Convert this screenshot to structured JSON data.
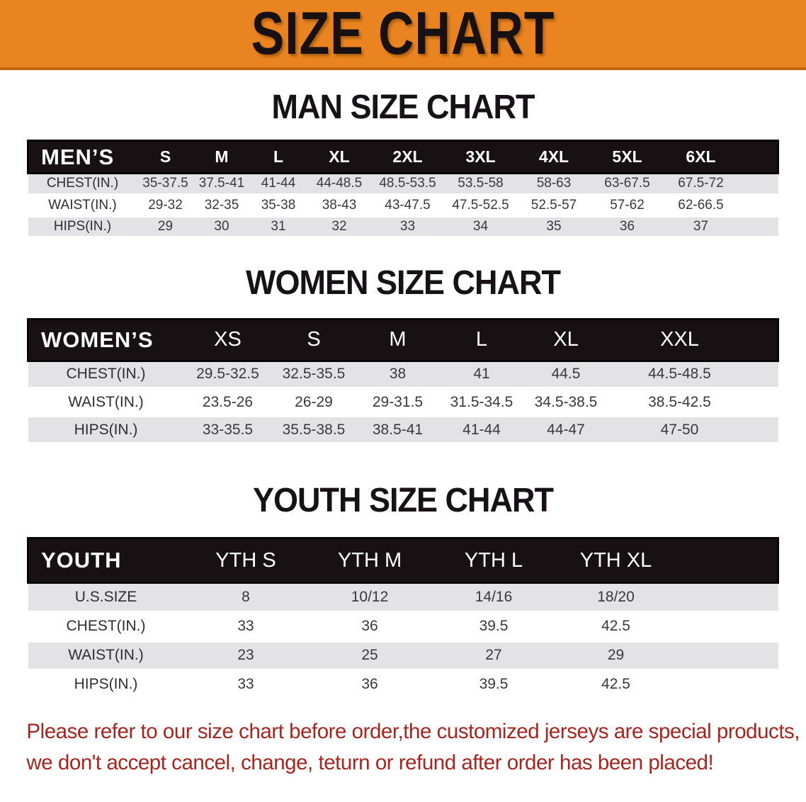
{
  "banner": {
    "title": "SIZE CHART"
  },
  "colors": {
    "banner_orange": "#EA8420",
    "banner_edge": "#C4690E",
    "header_black": "#171114",
    "row_gray": "#E3E3E6",
    "note_red": "#A8241F"
  },
  "man": {
    "heading": "MAN SIZE CHART",
    "table": {
      "title": "MEN’S",
      "columns": [
        "S",
        "M",
        "L",
        "XL",
        "2XL",
        "3XL",
        "4XL",
        "5XL",
        "6XL"
      ],
      "rows": [
        {
          "label": "CHEST(IN.)",
          "values": [
            "35-37.5",
            "37.5-41",
            "41-44",
            "44-48.5",
            "48.5-53.5",
            "53.5-58",
            "58-63",
            "63-67.5",
            "67.5-72"
          ]
        },
        {
          "label": "WAIST(IN.)",
          "values": [
            "29-32",
            "32-35",
            "35-38",
            "38-43",
            "43-47.5",
            "47.5-52.5",
            "52.5-57",
            "57-62",
            "62-66.5"
          ]
        },
        {
          "label": "HIPS(IN.)",
          "values": [
            "29",
            "30",
            "31",
            "32",
            "33",
            "34",
            "35",
            "36",
            "37"
          ]
        }
      ]
    }
  },
  "women": {
    "heading": "WOMEN SIZE CHART",
    "table": {
      "title": "WOMEN’S",
      "columns": [
        "XS",
        "S",
        "M",
        "L",
        "XL",
        "XXL"
      ],
      "rows": [
        {
          "label": "CHEST(IN.)",
          "values": [
            "29.5-32.5",
            "32.5-35.5",
            "38",
            "41",
            "44.5",
            "44.5-48.5"
          ]
        },
        {
          "label": "WAIST(IN.)",
          "values": [
            "23.5-26",
            "26-29",
            "29-31.5",
            "31.5-34.5",
            "34.5-38.5",
            "38.5-42.5"
          ]
        },
        {
          "label": "HIPS(IN.)",
          "values": [
            "33-35.5",
            "35.5-38.5",
            "38.5-41",
            "41-44",
            "44-47",
            "47-50"
          ]
        }
      ]
    }
  },
  "youth": {
    "heading": "YOUTH SIZE CHART",
    "table": {
      "title": "YOUTH",
      "columns": [
        "YTH S",
        "YTH M",
        "YTH L",
        "YTH XL"
      ],
      "rows": [
        {
          "label": "U.S.SIZE",
          "values": [
            "8",
            "10/12",
            "14/16",
            "18/20"
          ]
        },
        {
          "label": "CHEST(IN.)",
          "values": [
            "33",
            "36",
            "39.5",
            "42.5"
          ]
        },
        {
          "label": "WAIST(IN.)",
          "values": [
            "23",
            "25",
            "27",
            "29"
          ]
        },
        {
          "label": "HIPS(IN.)",
          "values": [
            "33",
            "36",
            "39.5",
            "42.5"
          ]
        }
      ]
    }
  },
  "footer": {
    "line1": "Please refer to our size chart before order,the customized jerseys are special products,",
    "line2": "we don't accept cancel, change, teturn or refund after order has been placed!"
  }
}
